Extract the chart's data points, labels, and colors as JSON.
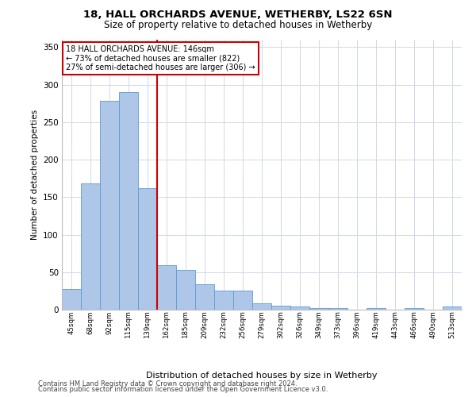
{
  "title1": "18, HALL ORCHARDS AVENUE, WETHERBY, LS22 6SN",
  "title2": "Size of property relative to detached houses in Wetherby",
  "xlabel": "Distribution of detached houses by size in Wetherby",
  "ylabel": "Number of detached properties",
  "categories": [
    "45sqm",
    "68sqm",
    "92sqm",
    "115sqm",
    "139sqm",
    "162sqm",
    "185sqm",
    "209sqm",
    "232sqm",
    "256sqm",
    "279sqm",
    "302sqm",
    "326sqm",
    "349sqm",
    "373sqm",
    "396sqm",
    "419sqm",
    "443sqm",
    "466sqm",
    "490sqm",
    "513sqm"
  ],
  "values": [
    28,
    168,
    278,
    290,
    162,
    59,
    53,
    34,
    25,
    25,
    9,
    5,
    4,
    2,
    2,
    0,
    2,
    0,
    2,
    0,
    4
  ],
  "bar_color": "#aec6e8",
  "bar_edge_color": "#5b9bd5",
  "vline_x_idx": 4,
  "vline_color": "#cc0000",
  "annotation_text": "18 HALL ORCHARDS AVENUE: 146sqm\n← 73% of detached houses are smaller (822)\n27% of semi-detached houses are larger (306) →",
  "annotation_box_color": "#ffffff",
  "annotation_box_edge": "#cc0000",
  "ylim": [
    0,
    360
  ],
  "yticks": [
    0,
    50,
    100,
    150,
    200,
    250,
    300,
    350
  ],
  "background_color": "#ffffff",
  "grid_color": "#d0d8e8",
  "footnote1": "Contains HM Land Registry data © Crown copyright and database right 2024.",
  "footnote2": "Contains public sector information licensed under the Open Government Licence v3.0."
}
